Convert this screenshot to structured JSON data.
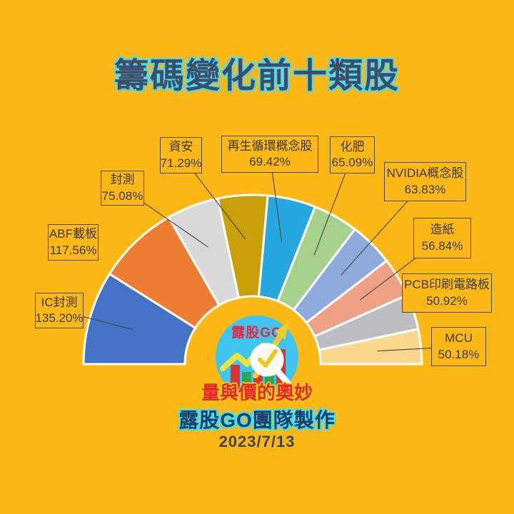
{
  "page": {
    "background": "#FDB815",
    "title": "籌碼變化前十類股",
    "footer_team": "露股GO團隊製作",
    "footer_date": "2023/7/13"
  },
  "logo": {
    "brand": "露股GO",
    "tagline": "量與價的奧妙",
    "icons": [
      "bar-chart-icon",
      "trend-line-icon",
      "up-arrow-icon",
      "magnifier-check-icon"
    ],
    "circle_color": "#3FC6F0"
  },
  "chart_data": {
    "type": "pie",
    "variant": "half-doughnut-fan",
    "title": "籌碼變化前十類股",
    "unit": "%",
    "start_angle_deg": 180,
    "end_angle_deg": 0,
    "slice_border_color": "#FFFFFF",
    "leader_line_color": "#4D4A40",
    "items": [
      {
        "label": "IC封測",
        "value": 135.2,
        "display": "135.20%",
        "color": "#4472C4"
      },
      {
        "label": "ABF載板",
        "value": 117.56,
        "display": "117.56%",
        "color": "#ED7D31"
      },
      {
        "label": "封測",
        "value": 75.08,
        "display": "75.08%",
        "color": "#D9D9D9"
      },
      {
        "label": "資安",
        "value": 71.29,
        "display": "71.29%",
        "color": "#C99F0A"
      },
      {
        "label": "再生循環概念股",
        "value": 69.42,
        "display": "69.42%",
        "color": "#27A7E0"
      },
      {
        "label": "化肥",
        "value": 65.09,
        "display": "65.09%",
        "color": "#A8D08D"
      },
      {
        "label": "NVIDIA概念股",
        "value": 63.83,
        "display": "63.83%",
        "color": "#8FAADC"
      },
      {
        "label": "造紙",
        "value": 56.84,
        "display": "56.84%",
        "color": "#EEA184"
      },
      {
        "label": "PCB印刷電路板",
        "value": 50.92,
        "display": "50.92%",
        "color": "#BDBEC3"
      },
      {
        "label": "MCU",
        "value": 50.18,
        "display": "50.18%",
        "color": "#F9D78F"
      }
    ]
  }
}
